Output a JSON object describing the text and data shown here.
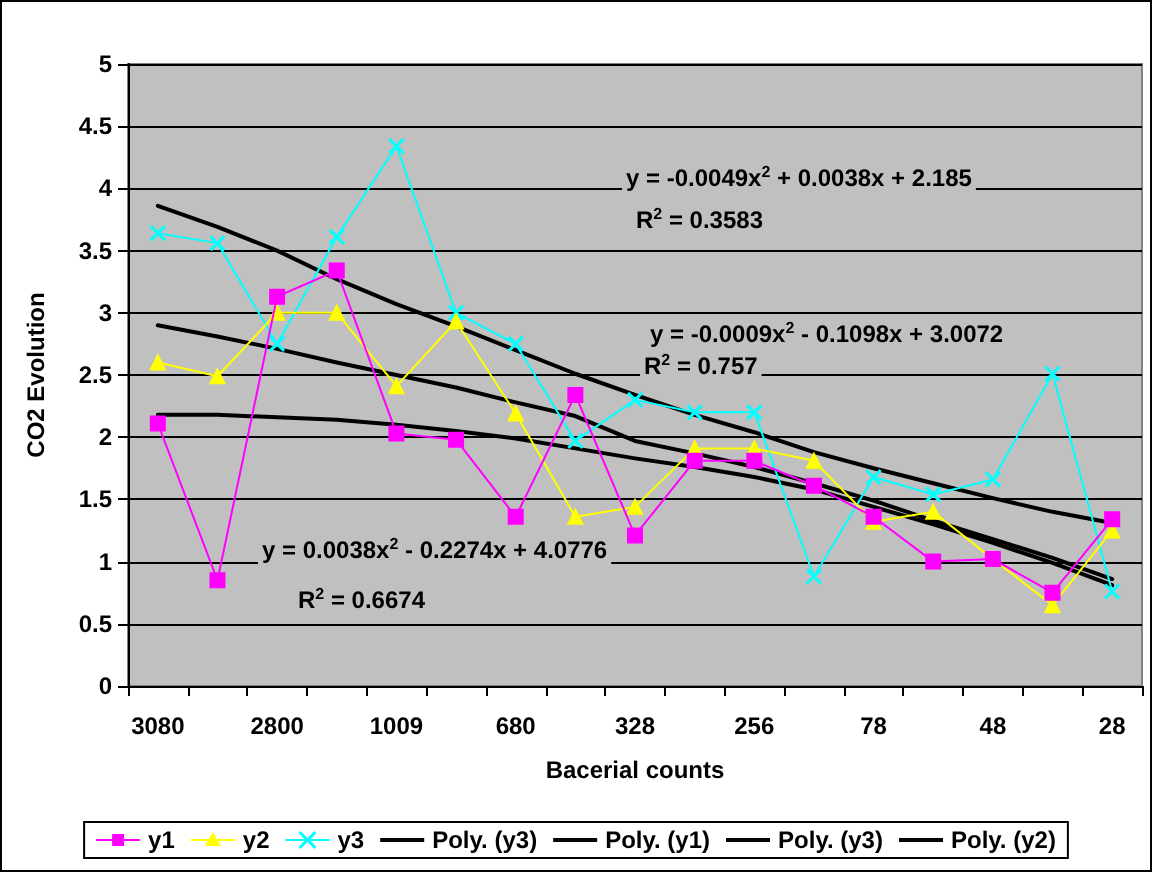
{
  "chart_data": {
    "type": "line",
    "xlabel": "Bacerial counts",
    "ylabel": "CO2 Evolution",
    "categories": [
      "3080",
      null,
      "2800",
      null,
      "1009",
      null,
      "680",
      null,
      "328",
      null,
      "256",
      null,
      "78",
      null,
      "48",
      null,
      "28"
    ],
    "series": [
      {
        "name": "y1",
        "color": "#ff00ff",
        "marker": "square",
        "values": [
          2.11,
          0.85,
          3.13,
          3.34,
          2.03,
          1.98,
          1.36,
          2.34,
          1.21,
          1.81,
          1.81,
          1.61,
          1.36,
          1.0,
          1.02,
          0.75,
          1.34
        ]
      },
      {
        "name": "y2",
        "color": "#ffff00",
        "marker": "triangle",
        "values": [
          2.6,
          2.49,
          3.0,
          3.0,
          2.41,
          2.93,
          2.19,
          1.36,
          1.44,
          1.91,
          1.91,
          1.81,
          1.32,
          1.4,
          1.02,
          0.65,
          1.25
        ]
      },
      {
        "name": "y3",
        "color": "#00ffff",
        "marker": "cross",
        "values": [
          3.64,
          3.56,
          2.75,
          3.61,
          4.34,
          3.0,
          2.75,
          1.97,
          2.3,
          2.2,
          2.2,
          0.88,
          1.68,
          1.54,
          1.66,
          2.51,
          0.76
        ]
      },
      {
        "name": "Poly. (y3)",
        "color": "#000000",
        "marker": "none",
        "values": [
          3.86,
          3.69,
          3.5,
          3.27,
          3.07,
          2.89,
          2.7,
          2.51,
          2.34,
          2.18,
          2.04,
          1.88,
          1.75,
          1.63,
          1.51,
          1.4,
          1.31
        ]
      },
      {
        "name": "Poly. (y1)",
        "color": "#000000",
        "marker": "none",
        "values": [
          2.18,
          2.18,
          2.16,
          2.14,
          2.1,
          2.05,
          1.99,
          1.91,
          1.83,
          1.76,
          1.68,
          1.58,
          1.44,
          1.3,
          1.15,
          0.99,
          0.81
        ]
      },
      {
        "name": "Poly. (y3)",
        "color": "#000000",
        "marker": "none",
        "values": [
          null,
          null,
          null,
          null,
          null,
          null,
          null,
          null,
          null,
          null,
          null,
          null,
          null,
          null,
          null,
          null,
          null
        ]
      },
      {
        "name": "Poly. (y2)",
        "color": "#000000",
        "marker": "none",
        "values": [
          2.9,
          2.81,
          2.71,
          2.6,
          2.5,
          2.4,
          2.28,
          2.17,
          1.97,
          1.87,
          1.76,
          1.63,
          1.49,
          1.33,
          1.18,
          1.03,
          0.86
        ]
      }
    ],
    "ylim": [
      0,
      5
    ],
    "yticks": [
      0,
      0.5,
      1,
      1.5,
      2,
      2.5,
      3,
      3.5,
      4,
      4.5,
      5
    ],
    "grid": "y",
    "legend": "bottom",
    "annotations": [
      "y = -0.0049x$^{2}$ + 0.0038x + 2.185",
      "R$^{2}$ = 0.3583",
      "y = -0.0009x$^{2}$ - 0.1098x + 3.0072",
      "R$^{2}$ = 0.757",
      "y = 0.0038x$^{2}$ - 0.2274x + 4.0776",
      "R$^{2}$ = 0.6674"
    ]
  }
}
